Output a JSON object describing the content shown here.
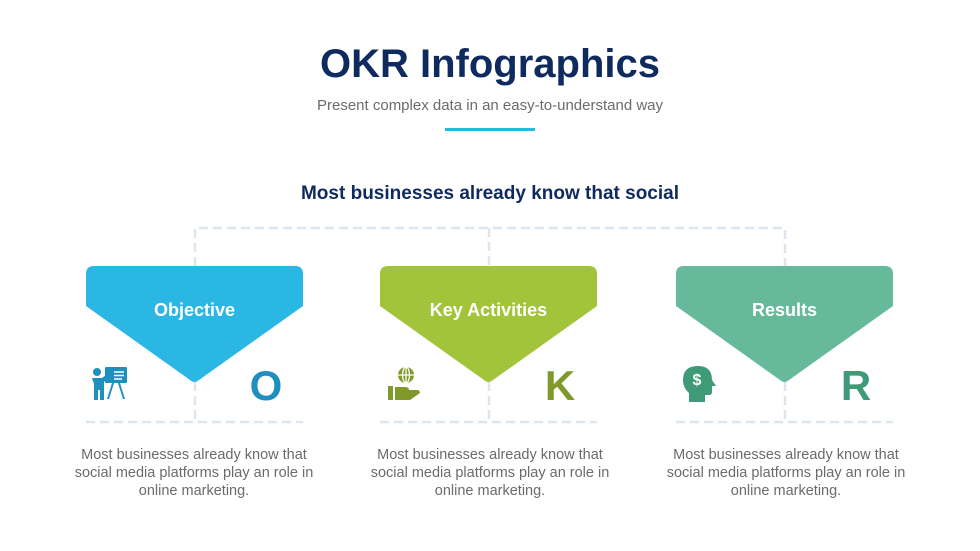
{
  "header": {
    "title": "OKR Infographics",
    "subtitle": "Present complex data in an easy-to-understand way",
    "accent": "#2bb7e4"
  },
  "heading": "Most businesses already know that social",
  "cards": [
    {
      "label": "Objective",
      "letter": "O",
      "icon": "presentation-icon",
      "color": "#2bb7e4",
      "letter_color": "#1f8fbd",
      "description": "Most businesses already know that social media platforms play an role in online marketing."
    },
    {
      "label": "Key Activities",
      "letter": "K",
      "icon": "globe-hand-icon",
      "color": "#a1c43a",
      "letter_color": "#7f9a2b",
      "description": "Most businesses already know that social media platforms play an role in online marketing."
    },
    {
      "label": "Results",
      "letter": "R",
      "icon": "dollar-head-icon",
      "color": "#66b99a",
      "letter_color": "#3f9a78",
      "description": "Most businesses already know that social media platforms play an role in online marketing."
    }
  ]
}
